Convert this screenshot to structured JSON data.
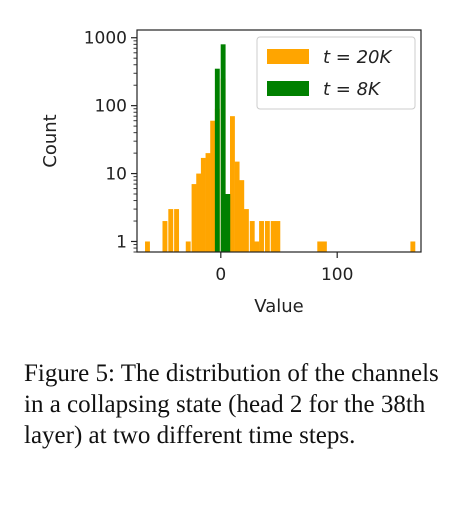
{
  "chart_data": {
    "type": "bar",
    "xlabel": "Value",
    "ylabel": "Count",
    "yscale": "log",
    "xlim": [
      -72,
      172
    ],
    "ylim": [
      0.7,
      1300
    ],
    "xticks": [
      0,
      100
    ],
    "xtick_labels": [
      "0",
      "100"
    ],
    "yticks": [
      1,
      10,
      100,
      1000
    ],
    "ytick_labels": [
      "1",
      "10",
      "100",
      "1000"
    ],
    "grid": false,
    "legend_position": "top-right",
    "series": [
      {
        "name": "t = 20K",
        "color": "#ffa500",
        "x": [
          -63,
          -48,
          -43,
          -38,
          -28,
          -23,
          -19,
          -15,
          -11,
          -7,
          -3,
          2,
          6,
          10,
          14,
          18,
          22,
          27,
          31,
          35,
          40,
          45,
          49,
          85,
          89,
          165
        ],
        "values": [
          1,
          2,
          3,
          3,
          1,
          7,
          10,
          17,
          20,
          60,
          90,
          250,
          5,
          70,
          15,
          8,
          3,
          2,
          1,
          2,
          2,
          2,
          2,
          1,
          1,
          1
        ]
      },
      {
        "name": "t = 8K",
        "color": "#008000",
        "x": [
          -3,
          2,
          6
        ],
        "values": [
          350,
          800,
          5
        ]
      }
    ]
  },
  "caption": "Figure 5: The distribution of the channels in a collapsing state (head 2 for the 38th layer) at two different time steps."
}
